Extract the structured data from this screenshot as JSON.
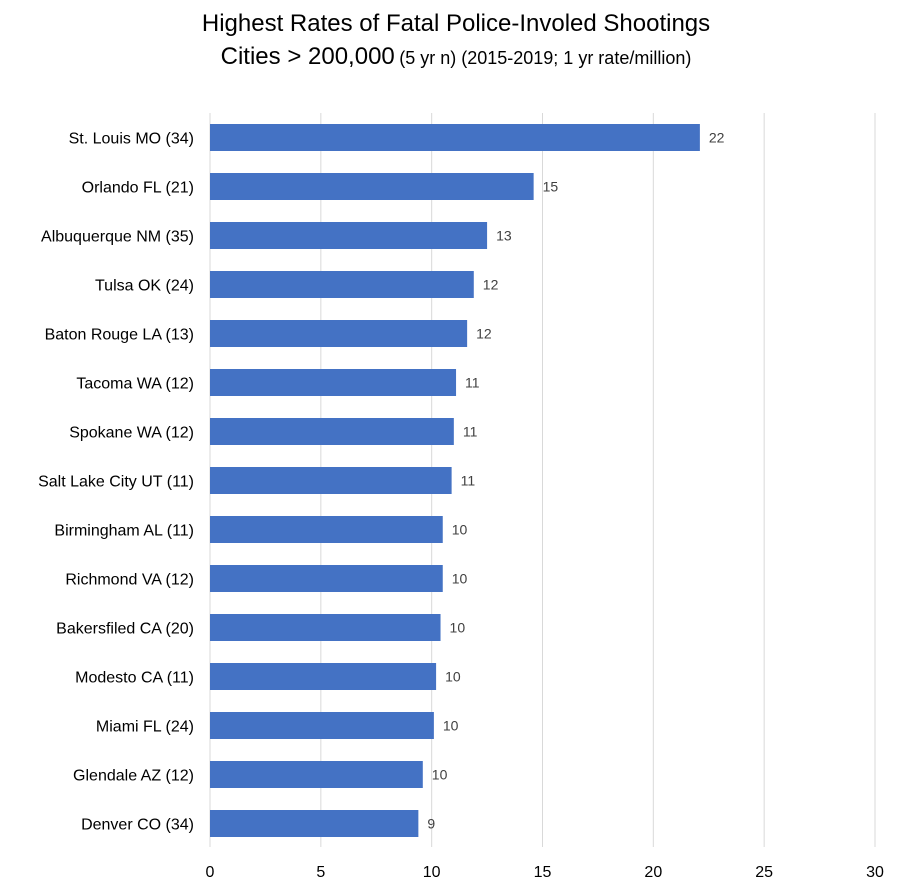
{
  "chart_data": {
    "type": "bar",
    "orientation": "horizontal",
    "title_line1": "Highest Rates of Fatal Police-Involed Shootings",
    "title_line2_main": "Cities > 200,000",
    "title_line2_sub": "(5 yr n) (2015-2019; 1 yr rate/million)",
    "categories": [
      "St. Louis MO (34)",
      "Orlando FL (21)",
      "Albuquerque NM (35)",
      "Tulsa OK (24)",
      "Baton Rouge LA (13)",
      "Tacoma WA (12)",
      "Spokane WA (12)",
      "Salt Lake City UT (11)",
      "Birmingham AL (11)",
      "Richmond VA (12)",
      "Bakersfiled CA (20)",
      "Modesto CA (11)",
      "Miami FL (24)",
      "Glendale AZ (12)",
      "Denver CO (34)"
    ],
    "values": [
      22.1,
      14.6,
      12.5,
      11.9,
      11.6,
      11.1,
      11.0,
      10.9,
      10.5,
      10.5,
      10.4,
      10.2,
      10.1,
      9.6,
      9.4
    ],
    "value_labels": [
      "22",
      "15",
      "13",
      "12",
      "12",
      "11",
      "11",
      "11",
      "10",
      "10",
      "10",
      "10",
      "10",
      "10",
      "9"
    ],
    "xlim": [
      0,
      30
    ],
    "xticks": [
      "0",
      "5",
      "10",
      "15",
      "20",
      "25",
      "30"
    ],
    "xlabel": "",
    "ylabel": "",
    "grid": "vertical",
    "legend": "none",
    "bar_color": "#4472C4",
    "grid_color": "#D9D9D9"
  }
}
